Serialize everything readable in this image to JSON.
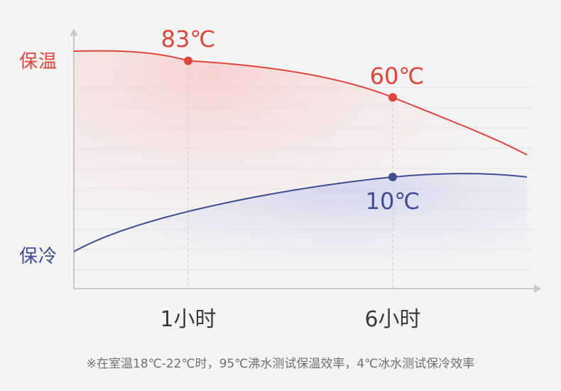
{
  "chart_data": {
    "type": "line",
    "x_categories": [
      "1小时",
      "6小时"
    ],
    "series": [
      {
        "name": "保温",
        "color": "#e0443a",
        "points": [
          {
            "x": "1小时",
            "value": 83,
            "label": "83℃"
          },
          {
            "x": "6小时",
            "value": 60,
            "label": "60℃"
          }
        ]
      },
      {
        "name": "保冷",
        "color": "#3f4d94",
        "points": [
          {
            "x": "6小时",
            "value": 10,
            "label": "10℃"
          }
        ]
      }
    ],
    "grid": true,
    "footnote": "※在室温18℃-22℃时，95℃沸水测试保温效率，4℃冰水测试保冷效率"
  }
}
